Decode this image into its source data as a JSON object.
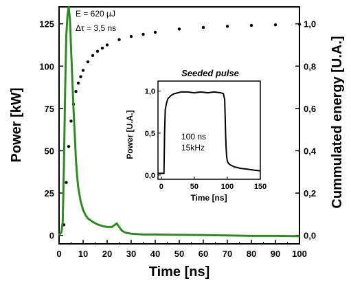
{
  "chart_data": [
    {
      "type": "line",
      "title": "",
      "xlabel": "Time  [ns]",
      "ylabel": "Power [kW]",
      "y2label": "Cummulated energy [U.A.]",
      "xlim": [
        0,
        100
      ],
      "ylim": [
        -5,
        135
      ],
      "y2lim": [
        -0.04,
        1.08
      ],
      "xticks": [
        "0",
        "10",
        "20",
        "30",
        "40",
        "50",
        "60",
        "70",
        "80",
        "90",
        "100"
      ],
      "xtick_values": [
        0,
        10,
        20,
        30,
        40,
        50,
        60,
        70,
        80,
        90,
        100
      ],
      "yticks": [
        "0",
        "25",
        "50",
        "75",
        "100",
        "125"
      ],
      "ytick_values": [
        0,
        25,
        50,
        75,
        100,
        125
      ],
      "y2ticks": [
        "0,0",
        "0,2",
        "0,4",
        "0,6",
        "0,8",
        "1,0"
      ],
      "y2tick_values": [
        0,
        0.2,
        0.4,
        0.6,
        0.8,
        1.0
      ],
      "grid": false,
      "annotations": [
        "E = 620 µJ",
        "Δτ = 3,5 ns"
      ],
      "colors": {
        "power": "#2e8b22",
        "energy": "#000000"
      },
      "series": [
        {
          "axis": "left",
          "style": "solid-green",
          "x": [
            0,
            1,
            1.5,
            2,
            2.5,
            3,
            3.5,
            4,
            4.5,
            5,
            5.5,
            6,
            6.5,
            7,
            7.5,
            8,
            9,
            10,
            11,
            12,
            14,
            16,
            18,
            20,
            22,
            23,
            24,
            25,
            26,
            27,
            28,
            30,
            35,
            40,
            50,
            60,
            70,
            80,
            90,
            100
          ],
          "y": [
            0,
            2,
            8,
            40,
            85,
            118,
            130,
            135,
            128,
            110,
            92,
            75,
            60,
            45,
            35,
            28,
            20,
            15,
            12,
            10,
            8,
            6.5,
            5.5,
            5,
            5,
            6,
            7,
            5,
            3,
            2,
            1.5,
            1,
            0.5,
            0.5,
            0.3,
            0.2,
            0,
            -0.3,
            -0.3,
            -0.5
          ]
        },
        {
          "axis": "right",
          "style": "dotted-black",
          "x": [
            2,
            3,
            4,
            5,
            6,
            7,
            8,
            9,
            10,
            12,
            14,
            16,
            18,
            20,
            25,
            30,
            35,
            40,
            50,
            60,
            70,
            80,
            90,
            100
          ],
          "y": [
            0.05,
            0.25,
            0.42,
            0.54,
            0.62,
            0.68,
            0.72,
            0.75,
            0.78,
            0.82,
            0.85,
            0.87,
            0.885,
            0.9,
            0.925,
            0.94,
            0.95,
            0.96,
            0.975,
            0.983,
            0.988,
            0.992,
            0.995,
            0.998
          ]
        }
      ]
    },
    {
      "type": "line",
      "title": "Seeded pulse",
      "xlabel": "Time  [ns]",
      "ylabel": "Power [U.A.]",
      "xlim": [
        -5,
        150
      ],
      "ylim": [
        -0.05,
        1.12
      ],
      "xticks": [
        "0",
        "50",
        "100",
        "150"
      ],
      "xtick_values": [
        0,
        50,
        100,
        150
      ],
      "yticks": [
        "0,0",
        "0,5",
        "1,0"
      ],
      "ytick_values": [
        0,
        0.5,
        1.0
      ],
      "grid": false,
      "annotations": [
        "100 ns",
        "15kHz"
      ],
      "series": [
        {
          "style": "solid-black",
          "x": [
            -5,
            4,
            5,
            6,
            8,
            10,
            15,
            20,
            25,
            30,
            40,
            50,
            60,
            70,
            80,
            90,
            94,
            96,
            97,
            98,
            99,
            100,
            101,
            102,
            103,
            105,
            110,
            120,
            130,
            140,
            150
          ],
          "y": [
            0.02,
            0.02,
            0.5,
            0.78,
            0.86,
            0.91,
            0.95,
            0.97,
            0.98,
            0.99,
            0.99,
            0.98,
            0.99,
            0.98,
            0.99,
            0.98,
            0.97,
            0.9,
            0.6,
            0.35,
            0.22,
            0.17,
            0.15,
            0.14,
            0.13,
            0.12,
            0.1,
            0.08,
            0.07,
            0.06,
            0.05
          ]
        }
      ]
    }
  ]
}
